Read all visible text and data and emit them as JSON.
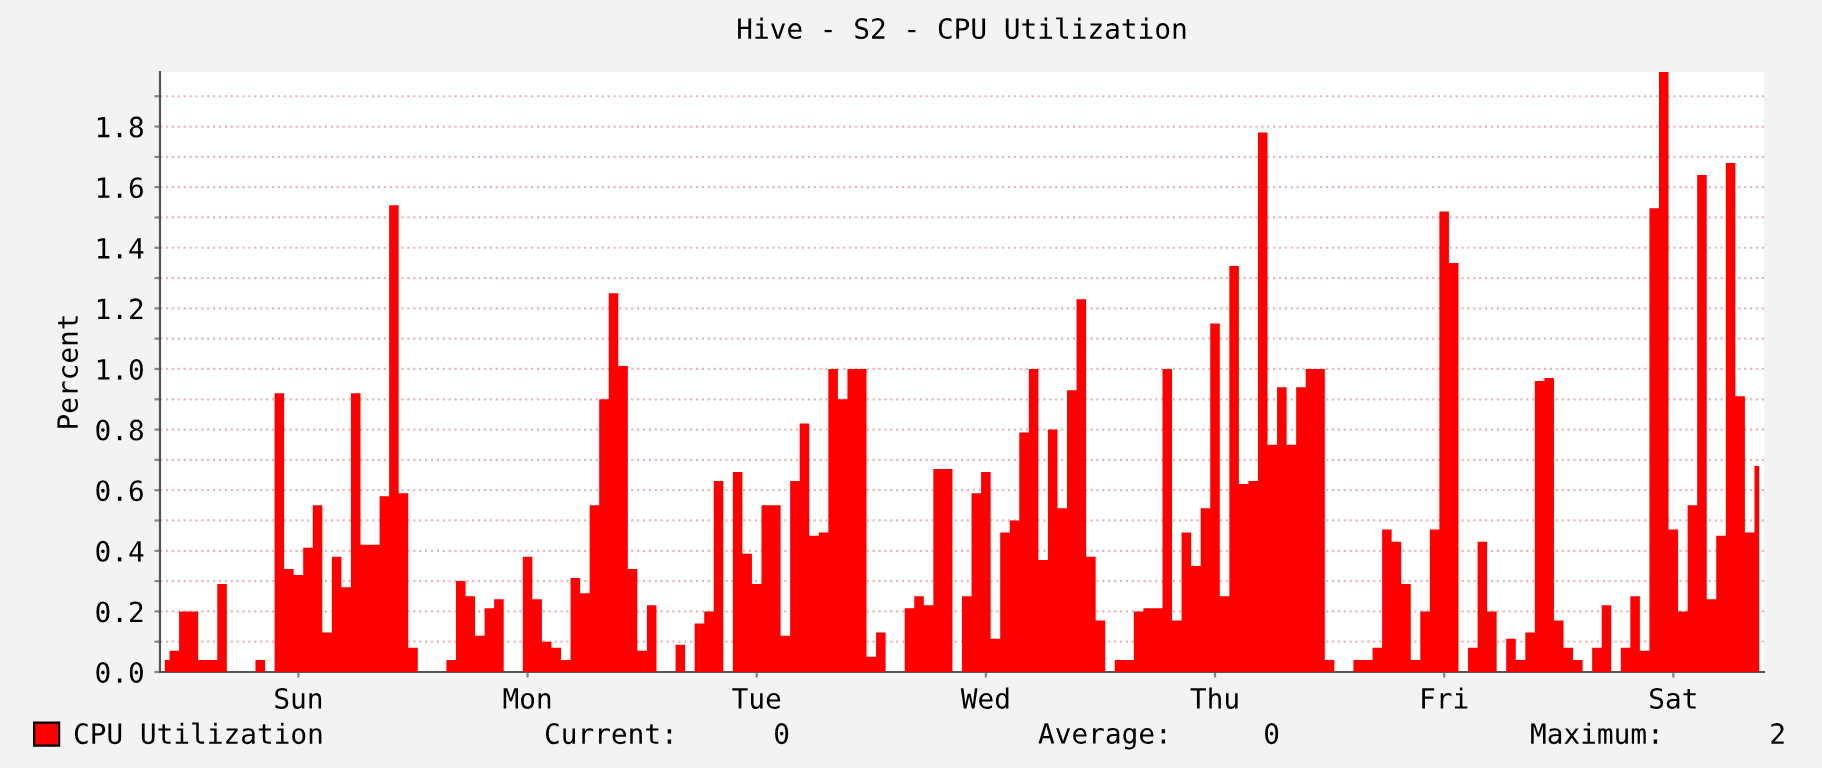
{
  "chart_data": {
    "type": "area",
    "title": "Hive - S2 - CPU Utilization",
    "ylabel": "Percent",
    "categories": [
      null,
      null,
      null,
      null,
      null,
      null,
      null,
      null,
      null,
      null,
      null,
      null,
      null,
      null,
      "Sun",
      null,
      null,
      null,
      null,
      null,
      null,
      null,
      null,
      null,
      null,
      null,
      null,
      null,
      null,
      null,
      null,
      null,
      null,
      null,
      null,
      null,
      null,
      null,
      "Mon",
      null,
      null,
      null,
      null,
      null,
      null,
      null,
      null,
      null,
      null,
      null,
      null,
      null,
      null,
      null,
      null,
      null,
      null,
      null,
      null,
      null,
      null,
      null,
      "Tue",
      null,
      null,
      null,
      null,
      null,
      null,
      null,
      null,
      null,
      null,
      null,
      null,
      null,
      null,
      null,
      null,
      null,
      null,
      null,
      null,
      null,
      null,
      null,
      "Wed",
      null,
      null,
      null,
      null,
      null,
      null,
      null,
      null,
      null,
      null,
      null,
      null,
      null,
      null,
      null,
      null,
      null,
      null,
      null,
      null,
      null,
      null,
      null,
      "Thu",
      null,
      null,
      null,
      null,
      null,
      null,
      null,
      null,
      null,
      null,
      null,
      null,
      null,
      null,
      null,
      null,
      null,
      null,
      null,
      null,
      null,
      null,
      null,
      "Fri",
      null,
      null,
      null,
      null,
      null,
      null,
      null,
      null,
      null,
      null,
      null,
      null,
      null,
      null,
      null,
      null,
      null,
      null,
      null,
      null,
      null,
      null,
      null,
      "Sat",
      null,
      null,
      null,
      null,
      null,
      null,
      null,
      null,
      null
    ],
    "series": [
      {
        "name": "CPU Utilization",
        "color": "#ff0000",
        "values": [
          0.04,
          0.07,
          0.2,
          0.2,
          0.04,
          0.04,
          0.29,
          0,
          0,
          0,
          0.04,
          0,
          0.92,
          0.34,
          0.32,
          0.41,
          0.55,
          0.13,
          0.38,
          0.28,
          0.92,
          0.42,
          0.42,
          0.58,
          1.54,
          0.59,
          0.08,
          0,
          0,
          0,
          0.04,
          0.3,
          0.25,
          0.12,
          0.21,
          0.24,
          0,
          0,
          0.38,
          0.24,
          0.1,
          0.08,
          0.04,
          0.31,
          0.26,
          0.55,
          0.9,
          1.25,
          1.01,
          0.34,
          0.07,
          0.22,
          0,
          0,
          0.09,
          0,
          0.16,
          0.2,
          0.63,
          0,
          0.66,
          0.39,
          0.29,
          0.55,
          0.55,
          0.12,
          0.63,
          0.82,
          0.45,
          0.46,
          1.0,
          0.9,
          1.0,
          1.0,
          0.05,
          0.13,
          0,
          0,
          0.21,
          0.25,
          0.22,
          0.67,
          0.67,
          0,
          0.25,
          0.59,
          0.66,
          0.11,
          0.46,
          0.5,
          0.79,
          1.0,
          0.37,
          0.8,
          0.54,
          0.93,
          1.23,
          0.38,
          0.17,
          0,
          0.04,
          0.04,
          0.2,
          0.21,
          0.21,
          1.0,
          0.17,
          0.46,
          0.35,
          0.54,
          1.15,
          0.25,
          1.34,
          0.62,
          0.63,
          1.78,
          0.75,
          0.94,
          0.75,
          0.94,
          1.0,
          1.0,
          0.04,
          0,
          0,
          0.04,
          0.04,
          0.08,
          0.47,
          0.43,
          0.29,
          0.04,
          0.2,
          0.47,
          1.52,
          1.35,
          0,
          0.08,
          0.43,
          0.2,
          0,
          0.11,
          0.04,
          0.13,
          0.96,
          0.97,
          0.17,
          0.08,
          0.04,
          0,
          0.08,
          0.22,
          0,
          0.08,
          0.25,
          0.07,
          1.53,
          1.98,
          0.47,
          0.2,
          0.55,
          1.64,
          0.24,
          0.45,
          1.68,
          0.91,
          0.46,
          0.68
        ]
      }
    ],
    "ylim": [
      0,
      1.98
    ],
    "yticks": [
      {
        "value": 0,
        "label": "0.0"
      },
      {
        "value": 0.1,
        "label": null
      },
      0.2,
      {
        "value": 0.3,
        "label": null
      },
      0.4,
      {
        "value": 0.5,
        "label": null
      },
      0.6,
      {
        "value": 0.7,
        "label": null
      },
      0.8,
      {
        "value": 0.9,
        "label": null
      },
      {
        "value": 1.0,
        "label": "1.0"
      },
      {
        "value": 1.1,
        "label": null
      },
      1.2,
      {
        "value": 1.3,
        "label": null
      },
      1.4,
      {
        "value": 1.5,
        "label": null
      },
      1.6,
      {
        "value": 1.7,
        "label": null
      },
      1.8,
      {
        "value": 1.9,
        "label": null
      }
    ],
    "grid": "y",
    "legend": "bottom left",
    "annotations": [
      "Current:",
      "0",
      "Average:",
      "0",
      "Maximum:",
      "2"
    ]
  }
}
